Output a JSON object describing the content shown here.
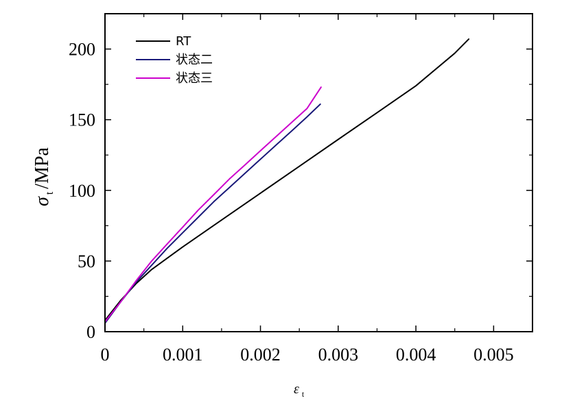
{
  "chart_data": {
    "type": "line",
    "xlabel": "ε",
    "xlabel_sub": "t",
    "ylabel": "σ",
    "ylabel_sub": "t",
    "ylabel_unit": "/MPa",
    "xlim": [
      0,
      0.0055
    ],
    "ylim": [
      0,
      225
    ],
    "xticks": [
      0,
      0.001,
      0.002,
      0.003,
      0.004,
      0.005
    ],
    "xtick_labels": [
      "0",
      "0.001",
      "0.002",
      "0.003",
      "0.004",
      "0.005"
    ],
    "yticks": [
      0,
      50,
      100,
      150,
      200
    ],
    "ytick_labels": [
      "0",
      "50",
      "100",
      "150",
      "200"
    ],
    "grid": false,
    "legend_position": "top-left",
    "series": [
      {
        "name": "RT",
        "color": "#000000",
        "x": [
          0,
          0.0002,
          0.0004,
          0.0006,
          0.0008,
          0.001,
          0.0015,
          0.002,
          0.0025,
          0.003,
          0.0035,
          0.004,
          0.0045,
          0.00468
        ],
        "y": [
          8,
          22,
          34,
          44,
          52,
          60,
          79,
          98,
          117,
          136,
          155,
          174,
          197,
          207
        ]
      },
      {
        "name": "状态二",
        "color": "#1a1a7a",
        "x": [
          0,
          0.0002,
          0.0004,
          0.0006,
          0.0008,
          0.001,
          0.0012,
          0.0014,
          0.0016,
          0.0018,
          0.002,
          0.0022,
          0.0024,
          0.0026,
          0.00277
        ],
        "y": [
          6,
          21,
          35,
          47,
          59,
          70,
          81,
          92,
          102,
          112,
          122,
          132,
          142,
          152,
          161
        ]
      },
      {
        "name": "状态三",
        "color": "#cc00cc",
        "x": [
          0,
          0.0002,
          0.0004,
          0.0006,
          0.0008,
          0.001,
          0.0012,
          0.0014,
          0.0016,
          0.0018,
          0.002,
          0.0022,
          0.0024,
          0.0026,
          0.00278
        ],
        "y": [
          7,
          21,
          36,
          50,
          62,
          74,
          86,
          97,
          108,
          118,
          128,
          138,
          148,
          158,
          173
        ]
      }
    ]
  }
}
